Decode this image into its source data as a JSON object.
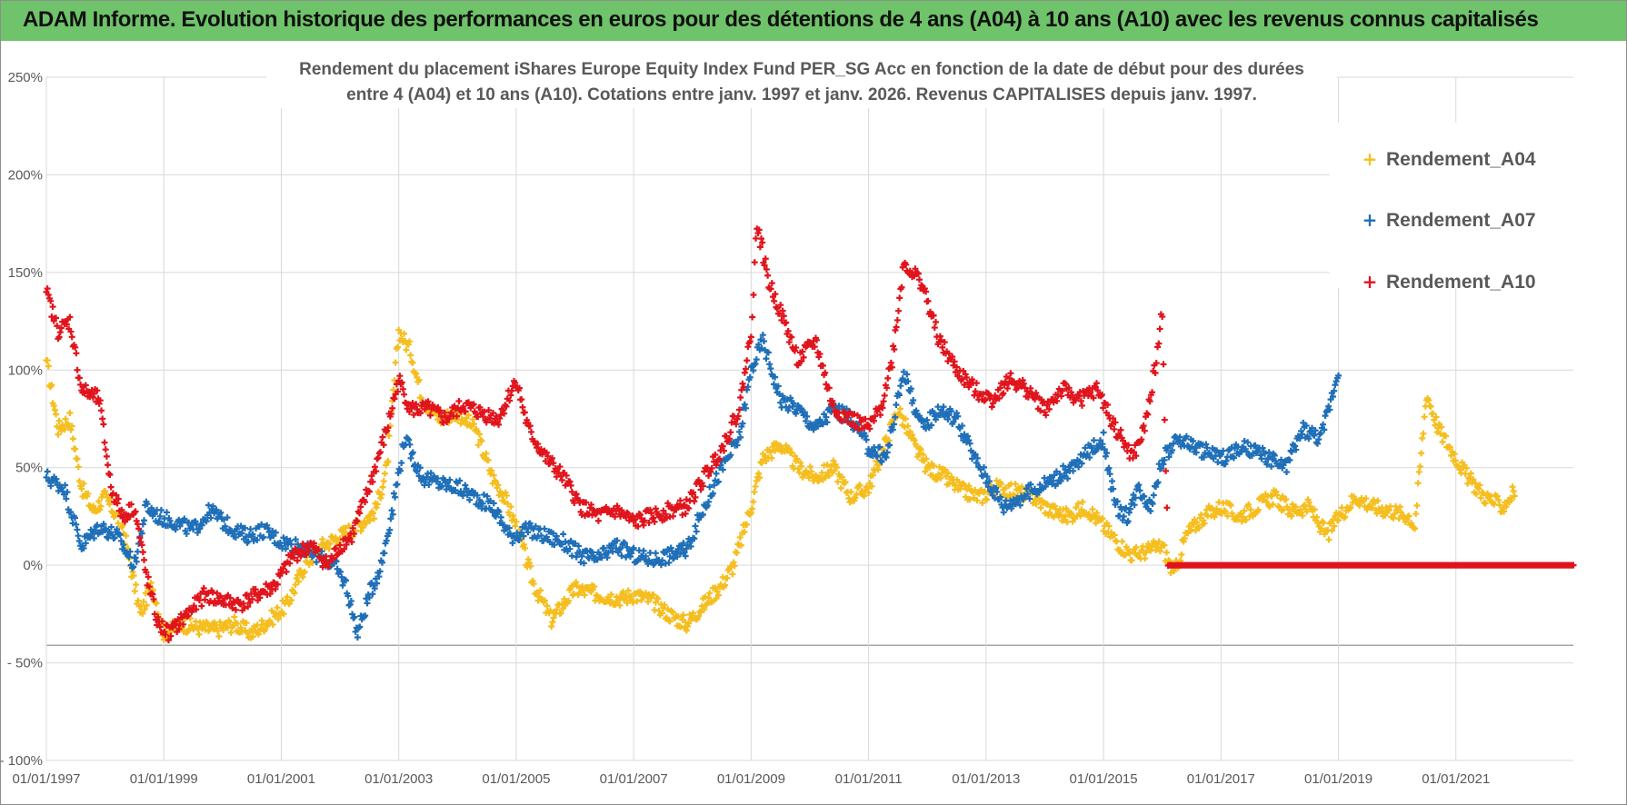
{
  "header": {
    "title": "ADAM Informe. Evolution historique des performances en euros pour des détentions de 4 ans (A04) à 10 ans (A10) avec les revenus connus capitalisés"
  },
  "colors": {
    "banner": "#6fc36a",
    "a04": "#f5be1e",
    "a07": "#1f6fb8",
    "a10": "#e0141c",
    "grid": "#d9d9d9",
    "axis_text": "#595959"
  },
  "chart_data": {
    "type": "scatter",
    "title_line1": "Rendement du placement iShares Europe Equity Index Fund PER_SG Acc en fonction de la date de début pour des durées",
    "title_line2": "entre 4 (A04) et 10 ans (A10).  Cotations entre janv. 1997 et janv. 2026. Revenus CAPITALISES  depuis janv. 1997.",
    "xlabel": "",
    "ylabel": "",
    "x_range": [
      1997.0,
      2023.0
    ],
    "ylim": [
      -100,
      250
    ],
    "y_ticks": [
      250,
      200,
      150,
      100,
      50,
      0,
      -50,
      -100
    ],
    "y_tick_labels": [
      "250%",
      "200%",
      "150%",
      "100%",
      "50%",
      "0%",
      "- 50%",
      "- 100%"
    ],
    "x_ticks": [
      1997,
      1999,
      2001,
      2003,
      2005,
      2007,
      2009,
      2011,
      2013,
      2015,
      2017,
      2019,
      2021
    ],
    "x_tick_labels": [
      "01/01/1997",
      "01/01/1999",
      "01/01/2001",
      "01/01/2003",
      "01/01/2005",
      "01/01/2007",
      "01/01/2009",
      "01/01/2011",
      "01/01/2013",
      "01/01/2015",
      "01/01/2017",
      "01/01/2019",
      "01/01/2021"
    ],
    "legend": {
      "position": "right",
      "entries": [
        "Rendement_A04",
        "Rendement_A07",
        "Rendement_A10"
      ]
    },
    "series": [
      {
        "name": "Rendement_A04",
        "color": "#f5be1e",
        "x": [
          1997.0,
          1997.2,
          1997.4,
          1997.6,
          1997.8,
          1998.0,
          1998.3,
          1998.6,
          1998.8,
          1999.0,
          1999.3,
          1999.6,
          1999.9,
          2000.2,
          2000.5,
          2000.8,
          2001.1,
          2001.4,
          2001.7,
          2002.0,
          2002.3,
          2002.6,
          2002.8,
          2003.0,
          2003.2,
          2003.4,
          2003.7,
          2004.0,
          2004.3,
          2004.6,
          2004.8,
          2005.0,
          2005.3,
          2005.6,
          2006.0,
          2006.4,
          2006.8,
          2007.0,
          2007.3,
          2007.6,
          2007.9,
          2008.2,
          2008.5,
          2008.7,
          2009.0,
          2009.2,
          2009.5,
          2009.8,
          2010.1,
          2010.4,
          2010.7,
          2011.0,
          2011.2,
          2011.5,
          2011.8,
          2012.0,
          2012.3,
          2012.6,
          2012.9,
          2013.2,
          2013.5,
          2013.8,
          2014.1,
          2014.4,
          2014.7,
          2015.0,
          2015.3,
          2015.5,
          2015.8,
          2016.0,
          2016.2,
          2016.4,
          2016.7,
          2017.0,
          2017.3,
          2017.6,
          2017.9,
          2018.2,
          2018.5,
          2018.8,
          2019.0,
          2019.3,
          2019.6,
          2019.9,
          2020.2,
          2020.3,
          2020.5,
          2020.7,
          2020.9,
          2021.2,
          2021.5,
          2021.8,
          2022.0
        ],
        "values": [
          105,
          70,
          75,
          40,
          28,
          35,
          20,
          -25,
          -10,
          -35,
          -30,
          -32,
          -33,
          -30,
          -35,
          -28,
          -20,
          0,
          10,
          15,
          20,
          28,
          50,
          120,
          110,
          85,
          75,
          78,
          70,
          45,
          35,
          20,
          -10,
          -28,
          -12,
          -15,
          -17,
          -15,
          -18,
          -25,
          -30,
          -20,
          -10,
          0,
          30,
          55,
          62,
          50,
          45,
          50,
          35,
          40,
          55,
          80,
          60,
          50,
          45,
          38,
          35,
          40,
          38,
          35,
          28,
          25,
          30,
          20,
          10,
          5,
          8,
          10,
          -5,
          15,
          25,
          30,
          25,
          30,
          35,
          28,
          30,
          15,
          25,
          35,
          30,
          28,
          25,
          20,
          88,
          70,
          60,
          45,
          35,
          30,
          38
        ]
      },
      {
        "name": "Rendement_A07",
        "color": "#1f6fb8",
        "x": [
          1997.0,
          1997.3,
          1997.6,
          1997.9,
          1998.2,
          1998.5,
          1998.7,
          1998.9,
          1999.2,
          1999.5,
          1999.8,
          2000.1,
          2000.4,
          2000.7,
          2001.0,
          2001.3,
          2001.6,
          2001.9,
          2002.1,
          2002.3,
          2002.5,
          2002.7,
          2002.9,
          2003.1,
          2003.4,
          2003.7,
          2004.0,
          2004.3,
          2004.6,
          2004.9,
          2005.2,
          2005.5,
          2005.8,
          2006.1,
          2006.4,
          2006.7,
          2007.0,
          2007.3,
          2007.6,
          2007.9,
          2008.2,
          2008.5,
          2008.8,
          2009.0,
          2009.2,
          2009.5,
          2009.8,
          2010.1,
          2010.4,
          2010.7,
          2011.0,
          2011.3,
          2011.6,
          2011.9,
          2012.2,
          2012.5,
          2012.8,
          2013.0,
          2013.3,
          2013.6,
          2013.9,
          2014.2,
          2014.5,
          2014.8,
          2015.0,
          2015.2,
          2015.4,
          2015.6,
          2015.8,
          2016.0,
          2016.3,
          2016.6,
          2017.0,
          2017.4,
          2017.8,
          2018.1,
          2018.4,
          2018.7,
          2019.0
        ],
        "values": [
          45,
          40,
          10,
          20,
          15,
          0,
          30,
          25,
          22,
          18,
          28,
          20,
          15,
          18,
          12,
          10,
          5,
          0,
          -10,
          -35,
          -15,
          0,
          30,
          65,
          45,
          42,
          40,
          35,
          30,
          15,
          18,
          15,
          12,
          5,
          3,
          10,
          5,
          3,
          5,
          8,
          30,
          50,
          65,
          100,
          115,
          85,
          80,
          70,
          80,
          75,
          60,
          55,
          100,
          70,
          80,
          75,
          55,
          45,
          30,
          35,
          40,
          45,
          50,
          60,
          65,
          30,
          25,
          40,
          30,
          55,
          65,
          60,
          55,
          60,
          55,
          50,
          70,
          65,
          100
        ]
      },
      {
        "name": "Rendement_A10",
        "color": "#e0141c",
        "x": [
          1997.0,
          1997.2,
          1997.4,
          1997.6,
          1997.9,
          1998.1,
          1998.3,
          1998.5,
          1998.7,
          1998.9,
          1999.1,
          1999.4,
          1999.7,
          2000.0,
          2000.3,
          2000.6,
          2000.9,
          2001.2,
          2001.5,
          2001.8,
          2002.0,
          2002.2,
          2002.5,
          2002.8,
          2003.0,
          2003.2,
          2003.5,
          2003.8,
          2004.1,
          2004.4,
          2004.7,
          2005.0,
          2005.2,
          2005.5,
          2005.8,
          2006.1,
          2006.4,
          2006.7,
          2007.0,
          2007.3,
          2007.6,
          2007.9,
          2008.2,
          2008.5,
          2008.8,
          2009.0,
          2009.1,
          2009.3,
          2009.5,
          2009.8,
          2010.1,
          2010.4,
          2010.7,
          2011.0,
          2011.2,
          2011.4,
          2011.6,
          2011.9,
          2012.2,
          2012.5,
          2012.8,
          2013.1,
          2013.4,
          2013.7,
          2014.0,
          2014.3,
          2014.6,
          2014.9,
          2015.2,
          2015.5,
          2015.7,
          2015.9,
          2016.0,
          2016.1,
          2016.2,
          2016.5,
          2017.0,
          2017.5,
          2018.0,
          2018.5,
          2019.0,
          2019.5,
          2020.0,
          2020.5,
          2021.0,
          2021.5,
          2022.0,
          2022.5,
          2023.0
        ],
        "values": [
          140,
          120,
          125,
          90,
          85,
          40,
          25,
          30,
          -5,
          -30,
          -35,
          -25,
          -15,
          -18,
          -20,
          -15,
          -10,
          5,
          10,
          0,
          10,
          15,
          40,
          70,
          95,
          80,
          80,
          75,
          82,
          78,
          75,
          95,
          70,
          55,
          45,
          30,
          25,
          28,
          22,
          25,
          28,
          30,
          45,
          60,
          80,
          120,
          175,
          145,
          130,
          105,
          115,
          80,
          75,
          70,
          80,
          105,
          155,
          145,
          115,
          100,
          90,
          85,
          95,
          90,
          80,
          90,
          85,
          90,
          70,
          55,
          70,
          105,
          130,
          0,
          0,
          0,
          0,
          0,
          0,
          0,
          0,
          0,
          0,
          0,
          0,
          0,
          0,
          0,
          0
        ]
      }
    ]
  }
}
